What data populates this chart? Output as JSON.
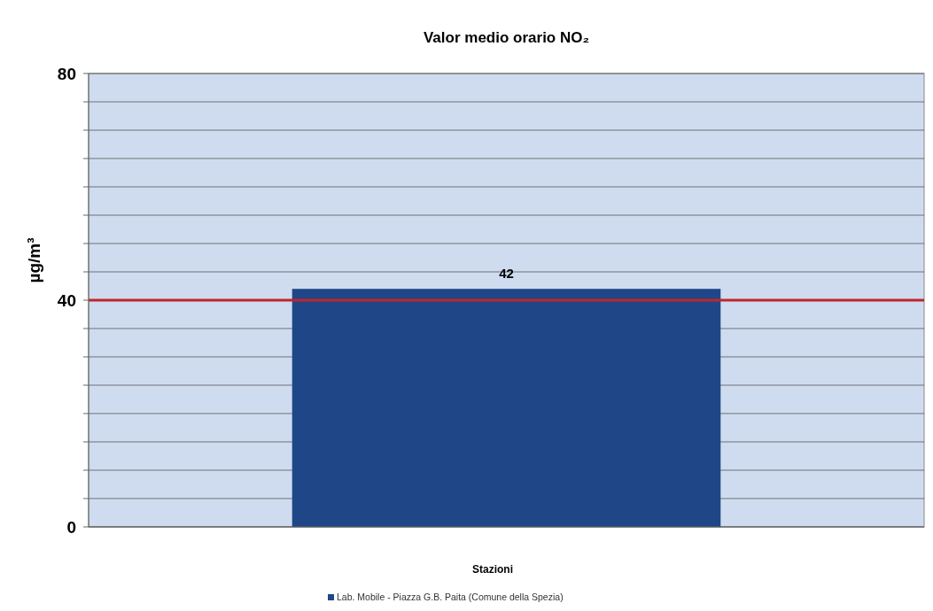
{
  "chart_data": {
    "type": "bar",
    "title": "Valor medio orario NO₂",
    "xlabel": "Stazioni",
    "ylabel": "µg/m³",
    "categories": [
      null
    ],
    "series": [
      {
        "name": "Lab. Mobile - Piazza G.B. Paita  (Comune della Spezia)",
        "color": "#1f4788",
        "values": [
          42
        ]
      }
    ],
    "ylim": [
      0,
      80
    ],
    "yticks": [
      0,
      {
        "value": 5,
        "label": null
      },
      {
        "value": 10,
        "label": null
      },
      {
        "value": 15,
        "label": null
      },
      {
        "value": 20,
        "label": null
      },
      {
        "value": 25,
        "label": null
      },
      {
        "value": 30,
        "label": null
      },
      {
        "value": 35,
        "label": null
      },
      40,
      {
        "value": 45,
        "label": null
      },
      {
        "value": 50,
        "label": null
      },
      {
        "value": 55,
        "label": null
      },
      {
        "value": 60,
        "label": null
      },
      {
        "value": 65,
        "label": null
      },
      {
        "value": 70,
        "label": null
      },
      {
        "value": 75,
        "label": null
      },
      80
    ],
    "ref_lines": [
      {
        "axis": "y",
        "value": 40,
        "color": "#c0262d"
      }
    ],
    "grid": true,
    "legend": "bottom",
    "data_labels": true
  }
}
